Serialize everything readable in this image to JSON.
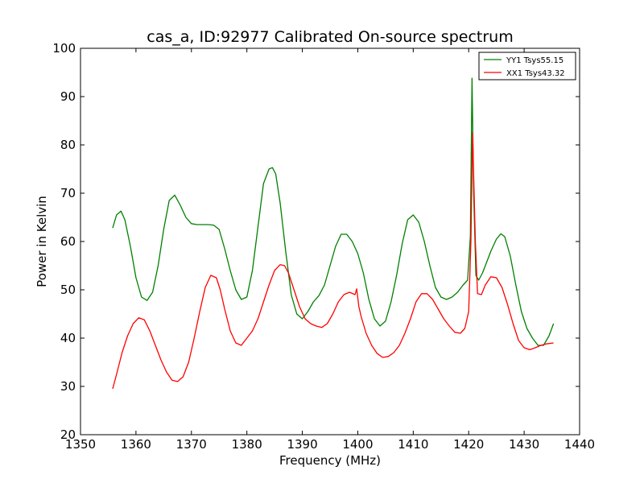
{
  "chart_data": {
    "type": "line",
    "title": "cas_a, ID:92977 Calibrated On-source spectrum",
    "xlabel": "Frequency (MHz)",
    "ylabel": "Power in Kelvin",
    "xlim": [
      1350,
      1440
    ],
    "ylim": [
      20,
      100
    ],
    "xticks": [
      1350,
      1360,
      1370,
      1380,
      1390,
      1400,
      1410,
      1420,
      1430,
      1440
    ],
    "yticks": [
      20,
      30,
      40,
      50,
      60,
      70,
      80,
      90,
      100
    ],
    "grid": false,
    "legend_position": "top-right",
    "series": [
      {
        "name": "YY1 Tsys55.15",
        "color": "#008000",
        "x": [
          1355.8,
          1356.5,
          1357.3,
          1358.0,
          1359.0,
          1360.0,
          1361.0,
          1362.0,
          1363.0,
          1364.0,
          1365.0,
          1366.0,
          1367.0,
          1368.0,
          1369.0,
          1370.0,
          1371.0,
          1372.0,
          1373.0,
          1374.0,
          1375.0,
          1376.0,
          1377.0,
          1378.0,
          1379.0,
          1380.0,
          1381.0,
          1382.0,
          1383.0,
          1384.0,
          1384.6,
          1385.2,
          1386.0,
          1387.0,
          1388.0,
          1389.0,
          1390.0,
          1391.0,
          1392.0,
          1393.0,
          1394.0,
          1395.0,
          1396.0,
          1397.0,
          1398.0,
          1399.0,
          1400.0,
          1401.0,
          1402.0,
          1403.0,
          1404.0,
          1405.0,
          1406.0,
          1407.0,
          1408.0,
          1409.0,
          1410.0,
          1411.0,
          1412.0,
          1413.0,
          1414.0,
          1415.0,
          1416.0,
          1417.0,
          1418.0,
          1419.0,
          1419.8,
          1420.3,
          1420.6,
          1420.9,
          1421.3,
          1421.8,
          1422.5,
          1423.0,
          1424.0,
          1425.0,
          1425.8,
          1426.5,
          1427.5,
          1428.5,
          1429.5,
          1430.5,
          1431.5,
          1432.5,
          1433.5,
          1434.5,
          1435.3
        ],
        "y": [
          62.8,
          65.5,
          66.3,
          64.5,
          59.0,
          52.5,
          48.5,
          47.8,
          49.5,
          55.0,
          62.5,
          68.5,
          69.6,
          67.5,
          65.0,
          63.7,
          63.5,
          63.5,
          63.5,
          63.4,
          62.5,
          58.5,
          54.0,
          50.0,
          48.0,
          48.5,
          54.0,
          63.0,
          72.0,
          75.0,
          75.3,
          74.0,
          68.0,
          58.0,
          49.0,
          45.0,
          44.0,
          45.5,
          47.5,
          48.8,
          51.0,
          55.0,
          59.0,
          61.5,
          61.5,
          60.0,
          57.5,
          53.5,
          48.0,
          44.0,
          42.5,
          43.5,
          47.5,
          53.0,
          59.5,
          64.5,
          65.5,
          64.0,
          60.0,
          55.0,
          50.5,
          48.5,
          48.0,
          48.5,
          49.5,
          51.0,
          52.0,
          61.0,
          93.8,
          70.0,
          53.0,
          52.0,
          53.5,
          55.0,
          58.0,
          60.5,
          61.6,
          61.0,
          57.0,
          51.0,
          45.5,
          42.0,
          40.0,
          38.5,
          38.5,
          40.5,
          43.0
        ]
      },
      {
        "name": "XX1 Tsys43.32",
        "color": "#ff0000",
        "x": [
          1355.8,
          1356.5,
          1357.5,
          1358.5,
          1359.5,
          1360.5,
          1361.5,
          1362.5,
          1363.5,
          1364.5,
          1365.5,
          1366.5,
          1367.5,
          1368.5,
          1369.5,
          1370.5,
          1371.5,
          1372.5,
          1373.5,
          1374.5,
          1375.2,
          1376.0,
          1377.0,
          1378.0,
          1379.0,
          1380.0,
          1381.0,
          1382.0,
          1383.0,
          1384.0,
          1385.0,
          1386.0,
          1386.8,
          1387.5,
          1388.5,
          1389.5,
          1390.5,
          1391.5,
          1392.5,
          1393.5,
          1394.5,
          1395.5,
          1396.5,
          1397.5,
          1398.5,
          1399.5,
          1399.8,
          1400.2,
          1400.6,
          1401.5,
          1402.5,
          1403.5,
          1404.5,
          1405.5,
          1406.5,
          1407.5,
          1408.5,
          1409.5,
          1410.5,
          1411.5,
          1412.5,
          1413.5,
          1414.5,
          1415.5,
          1416.5,
          1417.5,
          1418.5,
          1419.3,
          1420.0,
          1420.4,
          1420.7,
          1421.2,
          1421.6,
          1422.3,
          1423.0,
          1424.0,
          1425.0,
          1426.0,
          1427.0,
          1428.0,
          1429.0,
          1430.0,
          1431.0,
          1432.0,
          1433.0,
          1434.0,
          1435.3
        ],
        "y": [
          29.5,
          32.5,
          37.0,
          40.5,
          43.0,
          44.2,
          43.8,
          41.5,
          38.5,
          35.5,
          33.0,
          31.3,
          31.0,
          32.0,
          35.0,
          40.0,
          45.5,
          50.5,
          53.0,
          52.5,
          50.0,
          46.0,
          41.5,
          39.0,
          38.5,
          40.0,
          41.5,
          44.0,
          47.5,
          51.0,
          54.0,
          55.2,
          55.0,
          53.5,
          50.0,
          46.5,
          44.0,
          43.0,
          42.5,
          42.2,
          43.0,
          45.0,
          47.5,
          49.0,
          49.5,
          49.0,
          50.2,
          46.5,
          44.5,
          41.0,
          38.5,
          36.8,
          36.0,
          36.2,
          37.0,
          38.5,
          41.0,
          44.0,
          47.5,
          49.2,
          49.2,
          48.0,
          46.0,
          44.0,
          42.5,
          41.2,
          41.0,
          42.0,
          45.5,
          60.0,
          82.5,
          60.0,
          49.2,
          49.0,
          51.0,
          52.7,
          52.5,
          50.5,
          47.0,
          43.0,
          39.5,
          38.0,
          37.6,
          38.0,
          38.5,
          38.8,
          39.0
        ]
      }
    ]
  }
}
